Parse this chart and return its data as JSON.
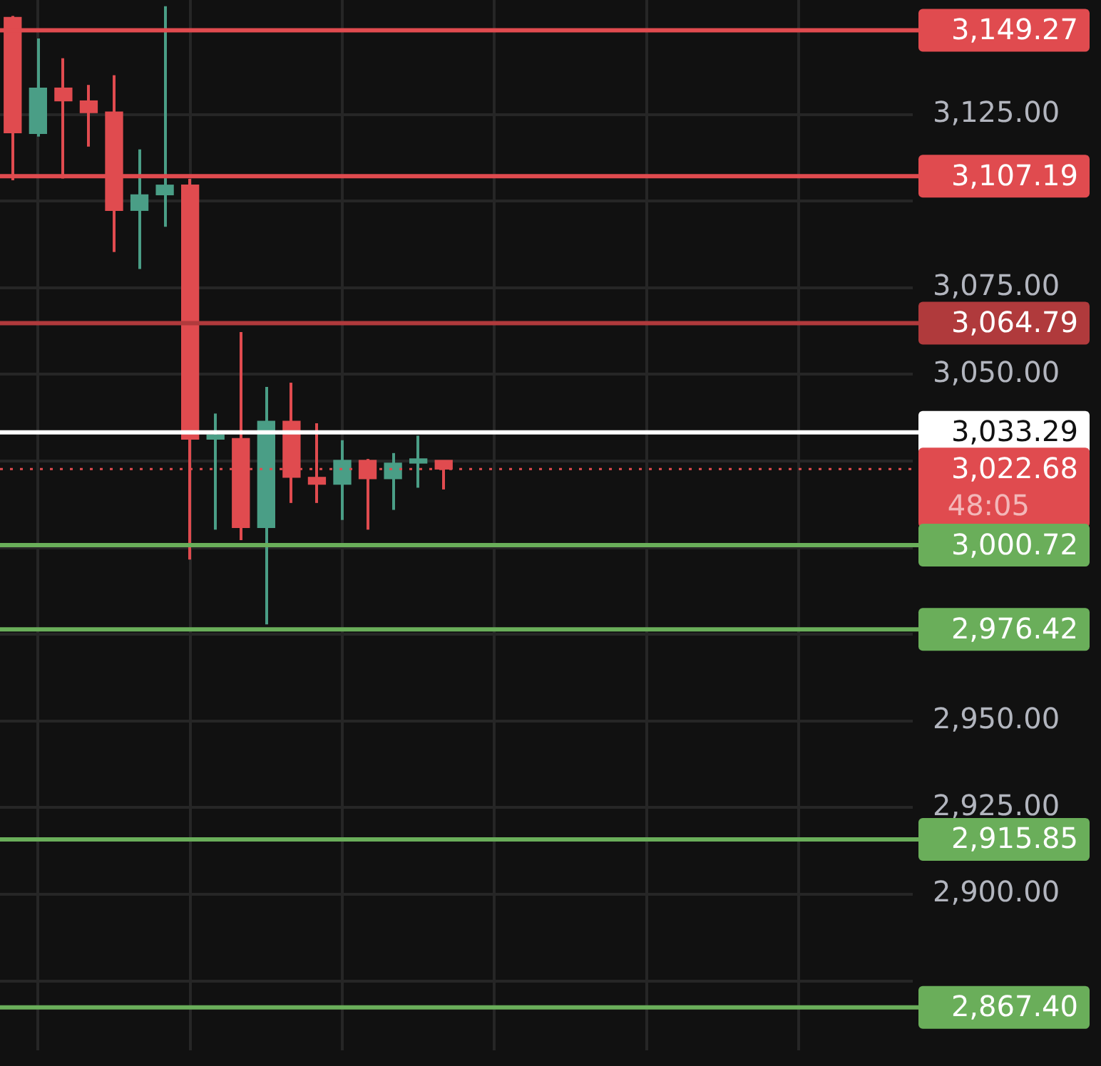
{
  "chart_data": {
    "type": "candlestick",
    "categories": [
      null,
      null,
      null,
      null,
      null,
      null,
      null,
      null,
      null,
      null,
      null,
      null,
      null,
      null,
      null,
      null,
      null,
      null,
      null,
      null,
      null,
      null,
      null,
      null,
      null,
      null,
      null,
      null,
      null,
      null,
      null,
      null,
      null,
      null,
      null,
      null
    ],
    "ohlc": [
      [
        3153.0,
        3153.4,
        3106.0,
        3119.7
      ],
      [
        3119.5,
        3146.9,
        3118.6,
        3132.6
      ],
      [
        3132.6,
        3141.2,
        3106.5,
        3128.9
      ],
      [
        3128.9,
        3133.5,
        3115.7,
        3125.5
      ],
      [
        3125.7,
        3136.3,
        3085.3,
        3097.3
      ],
      [
        3097.3,
        3114.9,
        3080.4,
        3101.8
      ],
      [
        3101.8,
        3156.2,
        3092.6,
        3104.6
      ],
      [
        3104.6,
        3106.4,
        2996.6,
        3031.3
      ],
      [
        3031.3,
        3038.7,
        3005.2,
        3031.9
      ],
      [
        3031.5,
        3062.2,
        3002.2,
        3005.8
      ],
      [
        3005.8,
        3046.4,
        2977.9,
        3036.5
      ],
      [
        3036.5,
        3047.6,
        3012.9,
        3020.3
      ],
      [
        3020.3,
        3035.9,
        3012.9,
        3018.3
      ],
      [
        3018.3,
        3031.0,
        3008.0,
        3025.2
      ],
      [
        3025.2,
        3025.6,
        3005.2,
        3019.9
      ],
      [
        3019.9,
        3027.3,
        3010.9,
        3024.4
      ],
      [
        3024.4,
        3032.3,
        3017.3,
        3024.9
      ],
      [
        3025.2,
        3025.2,
        3016.8,
        3022.68
      ],
      null,
      null,
      null,
      null,
      null,
      null,
      null,
      null,
      null,
      null,
      null,
      null,
      null,
      null,
      null,
      null,
      null,
      null
    ],
    "colors": [
      "#e04b4f",
      "#4a9e86",
      "#e04b4f",
      "#e04b4f",
      "#e04b4f",
      "#4a9e86",
      "#4a9e86",
      "#e04b4f",
      "#4a9e86",
      "#e04b4f",
      "#4a9e86",
      "#e04b4f",
      "#e04b4f",
      "#4a9e86",
      "#e04b4f",
      "#4a9e86",
      "#4a9e86",
      "#e04b4f",
      null,
      null,
      null,
      null,
      null,
      null,
      null,
      null,
      null,
      null,
      null,
      null,
      null,
      null,
      null,
      null,
      null,
      null
    ],
    "ylim": [
      2855,
      3158
    ],
    "yticks": [
      {
        "value": 2875,
        "label": null
      },
      {
        "value": 2900,
        "label": "2,900.00"
      },
      {
        "value": 2925,
        "label": "2,925.00"
      },
      {
        "value": 2950,
        "label": "2,950.00"
      },
      {
        "value": 2975,
        "label": null
      },
      {
        "value": 3000,
        "label": null
      },
      {
        "value": 3025,
        "label": null
      },
      {
        "value": 3050,
        "label": "3,050.00"
      },
      {
        "value": 3075,
        "label": "3,075.00"
      },
      {
        "value": 3100,
        "label": null
      },
      {
        "value": 3125,
        "label": "3,125.00"
      }
    ],
    "grid": true,
    "tick_labels": "y",
    "ref_lines": [
      {
        "axis": "y",
        "value": 3149.27,
        "label": "3,149.27",
        "color": "#e04b4f"
      },
      {
        "axis": "y",
        "value": 3107.19,
        "label": "3,107.19",
        "color": "#e04b4f"
      },
      {
        "axis": "y",
        "value": 3064.79,
        "label": "3,064.79",
        "color": "#b03a3c"
      },
      {
        "axis": "y",
        "value": 3033.29,
        "label": "3,033.29",
        "color": "#ffffff"
      },
      {
        "axis": "y",
        "value": 3022.68,
        "label": "3,022.68",
        "color": "#e04b4f",
        "line_style": "dotted"
      },
      {
        "axis": "y",
        "value": 3000.72,
        "label": "3,000.72",
        "color": "#6aae5a"
      },
      {
        "axis": "y",
        "value": 2976.42,
        "label": "2,976.42",
        "color": "#6aae5a"
      },
      {
        "axis": "y",
        "value": 2915.85,
        "label": "2,915.85",
        "color": "#6aae5a"
      },
      {
        "axis": "y",
        "value": 2867.4,
        "label": "2,867.40",
        "color": "#6aae5a"
      }
    ],
    "annotations": [
      "48:05"
    ]
  }
}
